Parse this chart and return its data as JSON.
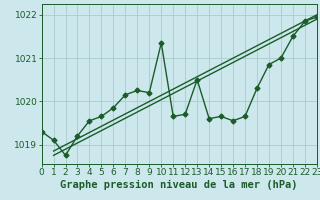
{
  "xlabel": "Graphe pression niveau de la mer (hPa)",
  "bg_color": "#cde8ec",
  "grid_color": "#aacccc",
  "line_color": "#1a5c2a",
  "x": [
    0,
    1,
    2,
    3,
    4,
    5,
    6,
    7,
    8,
    9,
    10,
    11,
    12,
    13,
    14,
    15,
    16,
    17,
    18,
    19,
    20,
    21,
    22,
    23
  ],
  "line1": [
    1019.3,
    1019.1,
    1018.75,
    1019.2,
    1019.55,
    1019.65,
    1019.85,
    1020.15,
    1020.25,
    1020.2,
    1021.35,
    1019.65,
    1019.7,
    1020.5,
    1019.6,
    1019.65,
    1019.55,
    1019.65,
    1020.3,
    1020.85,
    1021.0,
    1021.5,
    1021.85,
    1021.95
  ],
  "line2_x": [
    1,
    23
  ],
  "line2_y": [
    1018.75,
    1021.9
  ],
  "line3_x": [
    1,
    23
  ],
  "line3_y": [
    1018.85,
    1022.0
  ],
  "ylim": [
    1018.55,
    1022.25
  ],
  "xlim": [
    0,
    23
  ],
  "yticks": [
    1019,
    1020,
    1021,
    1022
  ],
  "xticks": [
    0,
    1,
    2,
    3,
    4,
    5,
    6,
    7,
    8,
    9,
    10,
    11,
    12,
    13,
    14,
    15,
    16,
    17,
    18,
    19,
    20,
    21,
    22,
    23
  ],
  "marker": "D",
  "marker_size": 2.5,
  "line_width": 1.0,
  "xlabel_fontsize": 7.5,
  "tick_fontsize": 6.5
}
